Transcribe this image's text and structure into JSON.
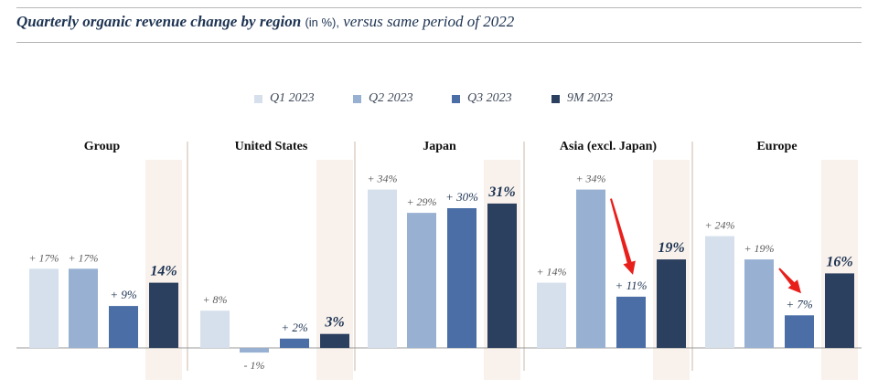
{
  "title": {
    "main": "Quarterly organic revenue change by region",
    "unit": "(in %),",
    "suffix": "versus same period of 2022"
  },
  "colors": {
    "q1": "#d6e0ec",
    "q2": "#98b0d2",
    "q3": "#4a6ea5",
    "m9": "#2b3f5e",
    "highlight": "#f8f1ec",
    "arrow": "#e8201c",
    "divider": "#cbb9a8",
    "axis": "#999999"
  },
  "chart_data": {
    "type": "bar",
    "unit": "%",
    "series_names": [
      "Q1 2023",
      "Q2 2023",
      "Q3 2023",
      "9M 2023"
    ],
    "panels": [
      {
        "name": "Group",
        "values": [
          17,
          17,
          9,
          14
        ],
        "labels": [
          "+ 17%",
          "+ 17%",
          "+ 9%",
          "14%"
        ]
      },
      {
        "name": "United States",
        "values": [
          8,
          -1,
          2,
          3
        ],
        "labels": [
          "+ 8%",
          "- 1%",
          "+ 2%",
          "3%"
        ]
      },
      {
        "name": "Japan",
        "values": [
          34,
          29,
          30,
          31
        ],
        "labels": [
          "+ 34%",
          "+ 29%",
          "+ 30%",
          "31%"
        ]
      },
      {
        "name": "Asia (excl. Japan)",
        "values": [
          14,
          34,
          11,
          19
        ],
        "labels": [
          "+ 14%",
          "+ 34%",
          "+ 11%",
          "19%"
        ]
      },
      {
        "name": "Europe",
        "values": [
          24,
          19,
          7,
          16
        ],
        "labels": [
          "+ 24%",
          "+ 19%",
          "+ 7%",
          "16%"
        ]
      }
    ],
    "ylim": [
      -2,
      40
    ],
    "annotations": [
      {
        "type": "arrow",
        "panel": "Asia (excl. Japan)",
        "from_series": 1,
        "to_series": 2
      },
      {
        "type": "arrow",
        "panel": "Europe",
        "from_series": 1,
        "to_series": 2
      }
    ]
  }
}
